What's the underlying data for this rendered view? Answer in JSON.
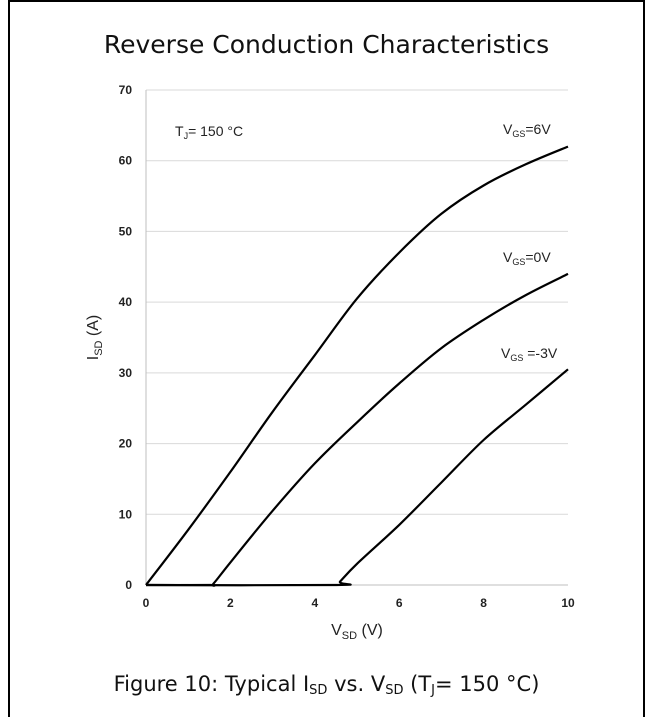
{
  "chart_data": {
    "type": "line",
    "title": "Reverse Conduction Characteristics",
    "caption": {
      "prefix": "Figure 10: Typical I",
      "sub1": "SD",
      "mid": " vs. V",
      "sub2": "SD",
      "mid2": " (T",
      "sub3": "J",
      "suffix": "= 150 °C)"
    },
    "xlabel": {
      "main": "V",
      "sub": "SD",
      "unit": " (V)"
    },
    "ylabel": {
      "main": "I",
      "sub": "SD",
      "unit": " (A)"
    },
    "xlim": [
      0,
      10
    ],
    "ylim": [
      0,
      70
    ],
    "xticks": [
      0,
      2,
      4,
      6,
      8,
      10
    ],
    "yticks": [
      0,
      10,
      20,
      30,
      40,
      50,
      60,
      70
    ],
    "grid": true,
    "annotation": {
      "main": "T",
      "sub": "J",
      "rest": "= 150 °C"
    },
    "series": [
      {
        "name": "VGS=6V",
        "label": {
          "main": "V",
          "sub": "GS",
          "rest": "=6V"
        },
        "x": [
          0,
          1,
          2,
          3,
          4,
          5,
          6,
          7,
          8,
          9,
          10
        ],
        "y": [
          0,
          7.8,
          16,
          24.5,
          32.5,
          40.5,
          47,
          52.5,
          56.5,
          59.5,
          62
        ]
      },
      {
        "name": "VGS=0V",
        "label": {
          "main": "V",
          "sub": "GS",
          "rest": "=0V"
        },
        "x": [
          0,
          1.5,
          1.6,
          2,
          3,
          4,
          5,
          6,
          7,
          8,
          9,
          10
        ],
        "y": [
          0,
          0,
          0.2,
          3.2,
          10.5,
          17.2,
          23,
          28.5,
          33.5,
          37.5,
          41,
          44
        ]
      },
      {
        "name": "VGS=-3V",
        "label": {
          "main": "V",
          "sub": "GS",
          "rest": " =-3V"
        },
        "x": [
          0,
          4.5,
          4.6,
          5,
          6,
          7,
          8,
          9,
          10
        ],
        "y": [
          0,
          0,
          0.5,
          3,
          8.5,
          14.5,
          20.5,
          25.5,
          30.5
        ]
      }
    ],
    "line_color": "#000000",
    "grid_color": "#d9d9d9"
  }
}
